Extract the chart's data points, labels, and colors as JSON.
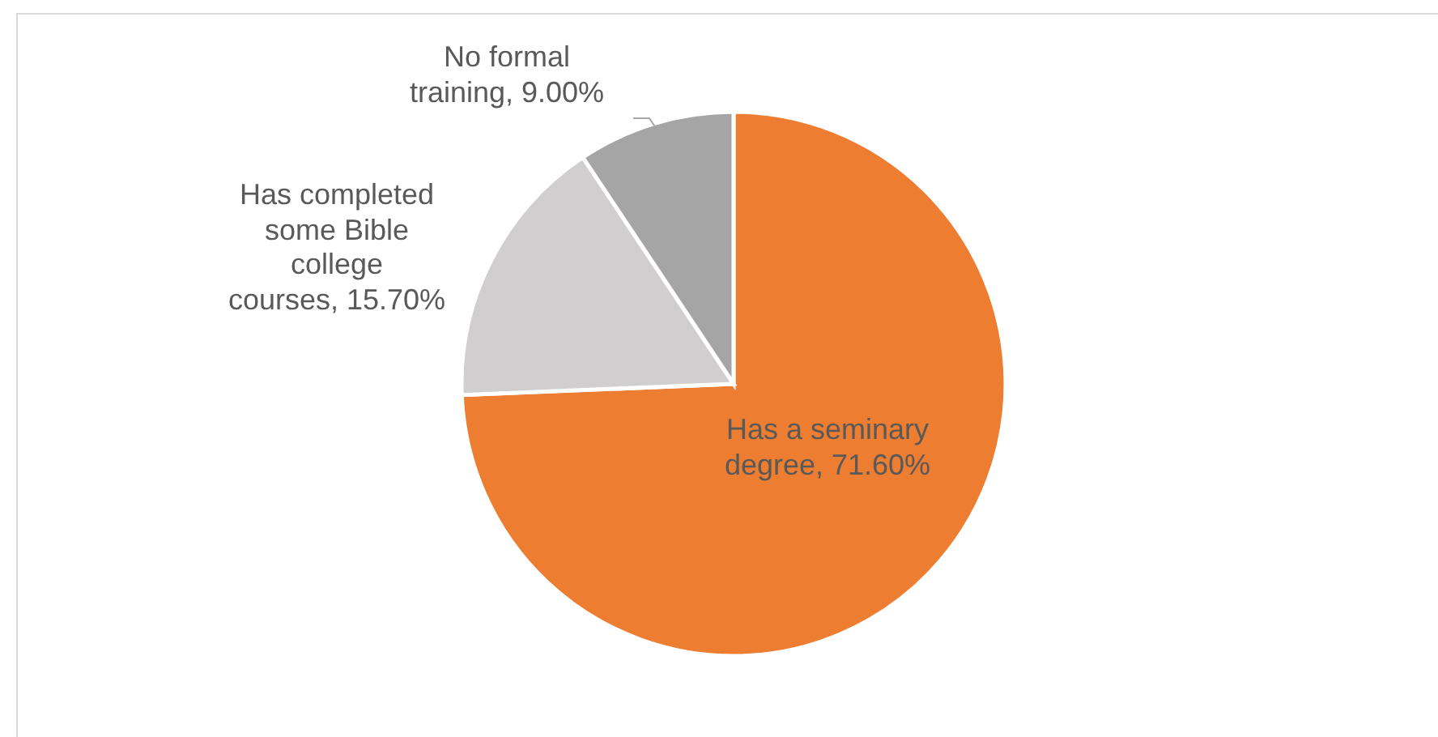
{
  "chart_data": {
    "type": "pie",
    "categories": [
      "Has a seminary degree",
      "Has completed some Bible college courses",
      "No formal training"
    ],
    "values": [
      71.6,
      15.7,
      9.0
    ],
    "value_labels": [
      "71.60%",
      "15.70%",
      "9.00%"
    ],
    "colors": [
      "#ed7d31",
      "#d0cece",
      "#a5a5a5"
    ]
  }
}
